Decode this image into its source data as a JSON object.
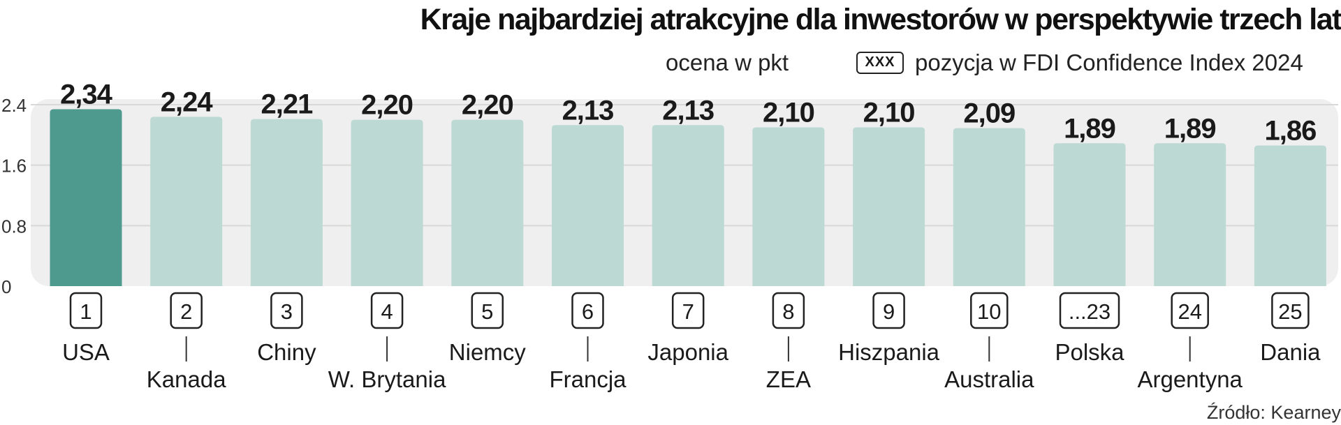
{
  "chart_data": {
    "type": "bar",
    "title": "Kraje najbardziej atrakcyjne dla inwestorów w perspektywie trzech lat",
    "legend": {
      "score_label": "ocena w pkt",
      "rank_box_text": "XXX",
      "rank_label": "pozycja w FDI Confidence Index 2024",
      "placement": "top-right"
    },
    "categories": [
      "USA",
      "Kanada",
      "Chiny",
      "W. Brytania",
      "Niemcy",
      "Francja",
      "Japonia",
      "ZEA",
      "Hiszpania",
      "Australia",
      "Polska",
      "Argentyna",
      "Dania"
    ],
    "values": [
      2.34,
      2.24,
      2.21,
      2.2,
      2.2,
      2.13,
      2.13,
      2.1,
      2.1,
      2.09,
      1.89,
      1.89,
      1.86
    ],
    "value_labels": [
      "2,34",
      "2,24",
      "2,21",
      "2,20",
      "2,20",
      "2,13",
      "2,13",
      "2,10",
      "2,10",
      "2,09",
      "1,89",
      "1,89",
      "1,86"
    ],
    "ranks": [
      "1",
      "2",
      "3",
      "4",
      "5",
      "6",
      "7",
      "8",
      "9",
      "10",
      "...23",
      "24",
      "25"
    ],
    "highlight_index": 0,
    "y_ticks": [
      "0",
      "0.8",
      "1.6",
      "2.4"
    ],
    "y_tick_values": [
      0,
      0.8,
      1.6,
      2.4
    ],
    "ylim": [
      0,
      2.4
    ],
    "grid": true,
    "colors": {
      "highlight": "#4f9a8e",
      "bar": "#bcd9d3",
      "panel": "#efefef",
      "grid": "#d8d8d8",
      "text": "#1a1a1a"
    },
    "source": "Źródło: Kearney"
  }
}
